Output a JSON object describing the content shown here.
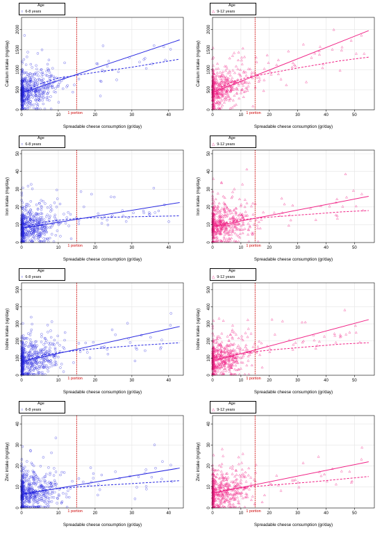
{
  "legend_title": "Age",
  "portion_label": "1 portion",
  "xlabel": "Spreadable cheese consumption (gr/day)",
  "colors": {
    "left": "#2525e0",
    "right": "#f01f84",
    "reference_line": "#cc0000",
    "grid": "#e4e4e4"
  },
  "groups": [
    {
      "key": "left",
      "legend": "6-8 years",
      "marker": "circle",
      "xlim": [
        0,
        44
      ],
      "xticks": [
        0,
        10,
        20,
        30,
        40
      ]
    },
    {
      "key": "right",
      "legend": "9-12 years",
      "marker": "triangle",
      "xlim": [
        0,
        57
      ],
      "xticks": [
        0,
        10,
        20,
        30,
        40,
        50
      ]
    }
  ],
  "chart_data": [
    {
      "type": "scatter",
      "group": "6-8 years",
      "ylabel": "Calcium intake (mg/day)",
      "ylim": [
        0,
        2300
      ],
      "yticks": [
        0,
        500,
        1000,
        1500,
        2000
      ],
      "portion_x": 15,
      "linear_fit": [
        [
          0,
          420
        ],
        [
          43,
          1740
        ]
      ],
      "smooth_fit": [
        [
          0,
          390
        ],
        [
          3,
          560
        ],
        [
          6,
          680
        ],
        [
          10,
          790
        ],
        [
          15,
          860
        ],
        [
          20,
          930
        ],
        [
          30,
          1060
        ],
        [
          43,
          1260
        ]
      ],
      "points_note": "dense cloud concentrated at 0–12 gr/day, y 200–1400 mg/day"
    },
    {
      "type": "scatter",
      "group": "9-12 years",
      "ylabel": "Calcium intake (mg/day)",
      "ylim": [
        0,
        2300
      ],
      "yticks": [
        0,
        500,
        1000,
        1500,
        2000
      ],
      "portion_x": 15,
      "linear_fit": [
        [
          0,
          430
        ],
        [
          55,
          1970
        ]
      ],
      "smooth_fit": [
        [
          0,
          400
        ],
        [
          3,
          560
        ],
        [
          7,
          700
        ],
        [
          12,
          800
        ],
        [
          20,
          910
        ],
        [
          30,
          1040
        ],
        [
          45,
          1220
        ],
        [
          55,
          1310
        ]
      ],
      "points_note": "dense cloud concentrated at 0–14 gr/day, y 200–1500 mg/day"
    },
    {
      "type": "scatter",
      "group": "6-8 years",
      "ylabel": "Iron intake (mg/day)",
      "ylim": [
        0,
        52
      ],
      "yticks": [
        0,
        10,
        20,
        30,
        40,
        50
      ],
      "portion_x": 15,
      "linear_fit": [
        [
          0,
          8
        ],
        [
          43,
          22.5
        ]
      ],
      "smooth_fit": [
        [
          0,
          8
        ],
        [
          3,
          10
        ],
        [
          6,
          11.5
        ],
        [
          10,
          12.5
        ],
        [
          15,
          13.5
        ],
        [
          20,
          14
        ],
        [
          30,
          14.5
        ],
        [
          43,
          15
        ]
      ],
      "points_note": "dense cloud at 0–10 gr/day, y 3–25 mg/day"
    },
    {
      "type": "scatter",
      "group": "9-12 years",
      "ylabel": "Iron intake (mg/day)",
      "ylim": [
        0,
        52
      ],
      "yticks": [
        0,
        10,
        20,
        30,
        40,
        50
      ],
      "portion_x": 15,
      "linear_fit": [
        [
          0,
          9
        ],
        [
          55,
          26
        ]
      ],
      "smooth_fit": [
        [
          0,
          9
        ],
        [
          4,
          11
        ],
        [
          8,
          12.3
        ],
        [
          14,
          13.5
        ],
        [
          22,
          14.5
        ],
        [
          35,
          16
        ],
        [
          45,
          17.2
        ],
        [
          55,
          18
        ]
      ],
      "points_note": "dense cloud at 0–12 gr/day, y 3–28 mg/day"
    },
    {
      "type": "scatter",
      "group": "6-8 years",
      "ylabel": "Iodine intake (ug/day)",
      "ylim": [
        0,
        540
      ],
      "yticks": [
        0,
        100,
        200,
        300,
        400,
        500
      ],
      "portion_x": 15,
      "linear_fit": [
        [
          0,
          80
        ],
        [
          43,
          285
        ]
      ],
      "smooth_fit": [
        [
          0,
          75
        ],
        [
          3,
          100
        ],
        [
          6,
          118
        ],
        [
          10,
          132
        ],
        [
          15,
          145
        ],
        [
          20,
          155
        ],
        [
          30,
          172
        ],
        [
          43,
          190
        ]
      ],
      "points_note": "dense cloud at 0–12 gr/day, y 30–250 ug/day"
    },
    {
      "type": "scatter",
      "group": "9-12 years",
      "ylabel": "Iodine intake (ug/day)",
      "ylim": [
        0,
        540
      ],
      "yticks": [
        0,
        100,
        200,
        300,
        400,
        500
      ],
      "portion_x": 15,
      "linear_fit": [
        [
          0,
          82
        ],
        [
          55,
          325
        ]
      ],
      "smooth_fit": [
        [
          0,
          80
        ],
        [
          4,
          105
        ],
        [
          8,
          122
        ],
        [
          14,
          137
        ],
        [
          22,
          150
        ],
        [
          35,
          168
        ],
        [
          45,
          182
        ],
        [
          55,
          190
        ]
      ],
      "points_note": "dense cloud at 0–14 gr/day, y 30–280 ug/day"
    },
    {
      "type": "scatter",
      "group": "6-8 years",
      "ylabel": "Zinc intake (mg/day)",
      "ylim": [
        0,
        44
      ],
      "yticks": [
        0,
        10,
        20,
        30,
        40
      ],
      "portion_x": 15,
      "linear_fit": [
        [
          0,
          6.5
        ],
        [
          43,
          19
        ]
      ],
      "smooth_fit": [
        [
          0,
          6.3
        ],
        [
          3,
          7.6
        ],
        [
          6,
          8.5
        ],
        [
          10,
          9.2
        ],
        [
          15,
          10
        ],
        [
          20,
          10.6
        ],
        [
          30,
          11.6
        ],
        [
          43,
          13
        ]
      ],
      "points_note": "dense cloud at 0–12 gr/day, y 2–20 mg/day"
    },
    {
      "type": "scatter",
      "group": "9-12 years",
      "ylabel": "Zinc intake (mg/day)",
      "ylim": [
        0,
        44
      ],
      "yticks": [
        0,
        10,
        20,
        30,
        40
      ],
      "portion_x": 15,
      "linear_fit": [
        [
          0,
          7
        ],
        [
          55,
          22
        ]
      ],
      "smooth_fit": [
        [
          0,
          7
        ],
        [
          4,
          8.4
        ],
        [
          8,
          9.3
        ],
        [
          14,
          10.2
        ],
        [
          22,
          11
        ],
        [
          35,
          12.4
        ],
        [
          45,
          13.7
        ],
        [
          55,
          15
        ]
      ],
      "points_note": "dense cloud at 0–14 gr/day, y 2–22 mg/day"
    }
  ]
}
